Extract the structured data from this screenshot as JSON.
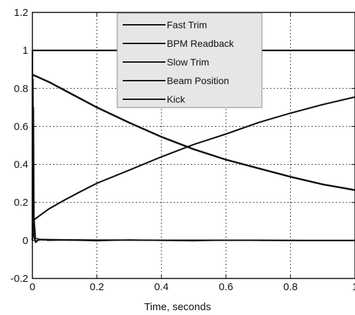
{
  "chart_data": {
    "type": "line",
    "title": "",
    "xlabel": "Time, seconds",
    "ylabel": "",
    "xlim": [
      0,
      1
    ],
    "ylim": [
      -0.2,
      1.2
    ],
    "x_ticks": [
      "0",
      "0.2",
      "0.4",
      "0.6",
      "0.8",
      "1"
    ],
    "y_ticks": [
      "-0.2",
      "0",
      "0.2",
      "0.4",
      "0.6",
      "0.8",
      "1",
      "1.2"
    ],
    "grid": true,
    "legend_position": "top-center",
    "series": [
      {
        "name": "Fast Trim",
        "color": "#111111",
        "x": [
          0,
          0.001,
          0.003,
          0.005,
          0.01,
          0.02,
          0.1,
          0.2,
          0.3,
          0.4,
          0.5,
          0.6,
          0.7,
          0.8,
          0.9,
          1.0
        ],
        "y": [
          0,
          0.3,
          0.7,
          0.02,
          -0.01,
          0.005,
          0.003,
          0.002,
          0.002,
          0.001,
          0.001,
          0.001,
          0.001,
          0.0,
          0.0,
          0.0
        ]
      },
      {
        "name": "BPM Readback",
        "color": "#111111",
        "x": [
          0,
          0.002,
          0.004,
          0.01,
          0.05,
          0.1,
          0.2,
          0.3,
          0.4,
          0.5,
          0.6,
          0.7,
          0.8,
          0.9,
          1.0
        ],
        "y": [
          0,
          0.85,
          0.15,
          0.01,
          0.0,
          0.002,
          -0.002,
          0.003,
          0.0,
          -0.002,
          0.002,
          0.0,
          0.001,
          -0.001,
          0.0
        ]
      },
      {
        "name": "Slow Trim",
        "color": "#111111",
        "x": [
          0,
          0.003,
          0.01,
          0.05,
          0.1,
          0.15,
          0.2,
          0.3,
          0.4,
          0.5,
          0.6,
          0.7,
          0.8,
          0.9,
          1.0
        ],
        "y": [
          0.1,
          0.105,
          0.115,
          0.165,
          0.213,
          0.258,
          0.301,
          0.37,
          0.44,
          0.505,
          0.56,
          0.62,
          0.67,
          0.715,
          0.755
        ]
      },
      {
        "name": "Beam Position",
        "color": "#111111",
        "x": [
          0,
          0.003,
          0.01,
          0.05,
          0.1,
          0.15,
          0.2,
          0.3,
          0.4,
          0.5,
          0.6,
          0.7,
          0.8,
          0.9,
          1.0
        ],
        "y": [
          0.87,
          0.87,
          0.865,
          0.835,
          0.79,
          0.745,
          0.7,
          0.62,
          0.545,
          0.48,
          0.425,
          0.38,
          0.335,
          0.295,
          0.265
        ]
      },
      {
        "name": "Kick",
        "color": "#111111",
        "x": [
          0,
          0.0001,
          1.0
        ],
        "y": [
          0,
          1.0,
          1.0
        ]
      }
    ]
  },
  "legend_labels": [
    "Fast Trim",
    "BPM Readback",
    "Slow Trim",
    "Beam Position",
    "Kick"
  ]
}
